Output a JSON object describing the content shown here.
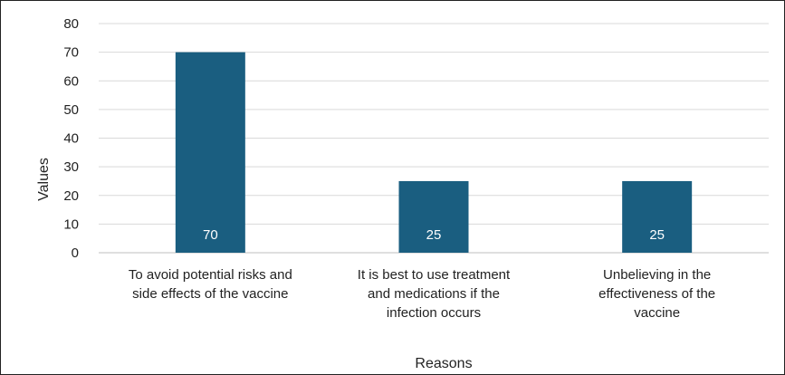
{
  "chart_data": {
    "type": "bar",
    "categories": [
      [
        "To avoid potential risks and",
        "side effects of the vaccine"
      ],
      [
        "It is best to use treatment",
        "and medications if the",
        "infection occurs"
      ],
      [
        "Unbelieving in the",
        "effectiveness of the",
        "vaccine"
      ]
    ],
    "values": [
      70,
      25,
      25
    ],
    "data_labels": [
      "70",
      "25",
      "25"
    ],
    "xlabel": "Reasons",
    "ylabel": "Values",
    "ylim": [
      0,
      80
    ],
    "yticks": [
      "0",
      "10",
      "20",
      "30",
      "40",
      "50",
      "60",
      "70",
      "80"
    ],
    "grid": true,
    "legend": "none",
    "colors": {
      "bar": "#1a5e80",
      "grid": "#d9d9d9",
      "text": "#222222",
      "data_label": "#ffffff"
    }
  }
}
